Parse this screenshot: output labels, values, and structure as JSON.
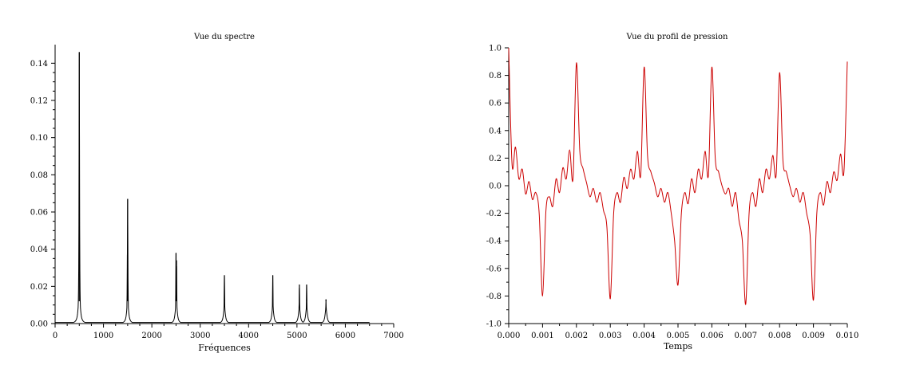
{
  "chart_data": [
    {
      "type": "line",
      "title": "Vue du spectre",
      "xlabel": "Fréquences",
      "ylabel": "",
      "xlim": [
        0,
        7000
      ],
      "ylim": [
        0,
        0.15
      ],
      "grid": false,
      "x_ticks": [
        "0",
        "1000",
        "2000",
        "3000",
        "4000",
        "5000",
        "6000",
        "7000"
      ],
      "y_ticks": [
        "0.00",
        "0.02",
        "0.04",
        "0.06",
        "0.08",
        "0.10",
        "0.12",
        "0.14"
      ],
      "line_color": "#000000",
      "x_max_data": 6500,
      "peaks": [
        {
          "x": 500,
          "y": 0.146
        },
        {
          "x": 1500,
          "y": 0.067
        },
        {
          "x": 1495,
          "y": 0.037
        },
        {
          "x": 2500,
          "y": 0.038
        },
        {
          "x": 2510,
          "y": 0.034
        },
        {
          "x": 3500,
          "y": 0.026
        },
        {
          "x": 4500,
          "y": 0.026
        },
        {
          "x": 5050,
          "y": 0.021
        },
        {
          "x": 5200,
          "y": 0.021
        },
        {
          "x": 5600,
          "y": 0.013
        }
      ]
    },
    {
      "type": "line",
      "title": "Vue du profil de pression",
      "xlabel": "Temps",
      "ylabel": "",
      "xlim": [
        0,
        0.01
      ],
      "ylim": [
        -1,
        1
      ],
      "grid": false,
      "x_ticks": [
        "0.000",
        "0.001",
        "0.002",
        "0.003",
        "0.004",
        "0.005",
        "0.006",
        "0.007",
        "0.008",
        "0.009",
        "0.010"
      ],
      "y_ticks": [
        "-1.0",
        "-0.8",
        "-0.6",
        "-0.4",
        "-0.2",
        "0.0",
        "0.2",
        "0.4",
        "0.6",
        "0.8",
        "1.0"
      ],
      "line_color": "#cc0000",
      "x": [
        0,
        0.0001,
        0.0002,
        0.0003,
        0.0004,
        0.0005,
        0.0006,
        0.0007,
        0.0008,
        0.0009,
        0.001,
        0.0011,
        0.0012,
        0.0013,
        0.0014,
        0.0015,
        0.0016,
        0.0017,
        0.0018,
        0.0019,
        0.002,
        0.0021,
        0.0022,
        0.0023,
        0.0024,
        0.0025,
        0.0026,
        0.0027,
        0.0028,
        0.0029,
        0.003,
        0.0031,
        0.0032,
        0.0033,
        0.0034,
        0.0035,
        0.0036,
        0.0037,
        0.0038,
        0.0039,
        0.004,
        0.0041,
        0.0042,
        0.0043,
        0.0044,
        0.0045,
        0.0046,
        0.0047,
        0.0048,
        0.0049,
        0.005,
        0.0051,
        0.0052,
        0.0053,
        0.0054,
        0.0055,
        0.0056,
        0.0057,
        0.0058,
        0.0059,
        0.006,
        0.0061,
        0.0062,
        0.0063,
        0.0064,
        0.0065,
        0.0066,
        0.0067,
        0.0068,
        0.0069,
        0.007,
        0.0071,
        0.0072,
        0.0073,
        0.0074,
        0.0075,
        0.0076,
        0.0077,
        0.0078,
        0.0079,
        0.008,
        0.0081,
        0.0082,
        0.0083,
        0.0084,
        0.0085,
        0.0086,
        0.0087,
        0.0088,
        0.0089,
        0.009,
        0.0091,
        0.0092,
        0.0093,
        0.0094,
        0.0095,
        0.0096,
        0.0097,
        0.0098,
        0.0099,
        0.01
      ],
      "y": [
        1.0,
        0.15,
        0.28,
        0.05,
        0.12,
        -0.06,
        0.03,
        -0.1,
        -0.05,
        -0.2,
        -0.8,
        -0.18,
        -0.08,
        -0.15,
        0.05,
        -0.05,
        0.13,
        0.05,
        0.26,
        0.05,
        0.89,
        0.25,
        0.12,
        0.02,
        -0.08,
        -0.02,
        -0.12,
        -0.05,
        -0.18,
        -0.3,
        -0.82,
        -0.2,
        -0.05,
        -0.12,
        0.06,
        -0.02,
        0.12,
        0.05,
        0.25,
        0.08,
        0.86,
        0.22,
        0.1,
        0.02,
        -0.08,
        -0.02,
        -0.12,
        -0.05,
        -0.2,
        -0.4,
        -0.72,
        -0.2,
        -0.05,
        -0.13,
        0.05,
        -0.05,
        0.12,
        0.05,
        0.25,
        0.08,
        0.86,
        0.2,
        0.1,
        0.0,
        -0.06,
        -0.02,
        -0.15,
        -0.05,
        -0.25,
        -0.4,
        -0.86,
        -0.2,
        -0.05,
        -0.15,
        0.05,
        -0.05,
        0.12,
        0.05,
        0.22,
        0.08,
        0.82,
        0.18,
        0.1,
        0.0,
        -0.08,
        -0.02,
        -0.12,
        -0.05,
        -0.2,
        -0.35,
        -0.83,
        -0.2,
        -0.05,
        -0.14,
        0.03,
        -0.05,
        0.1,
        0.04,
        0.23,
        0.1,
        0.9
      ]
    }
  ]
}
